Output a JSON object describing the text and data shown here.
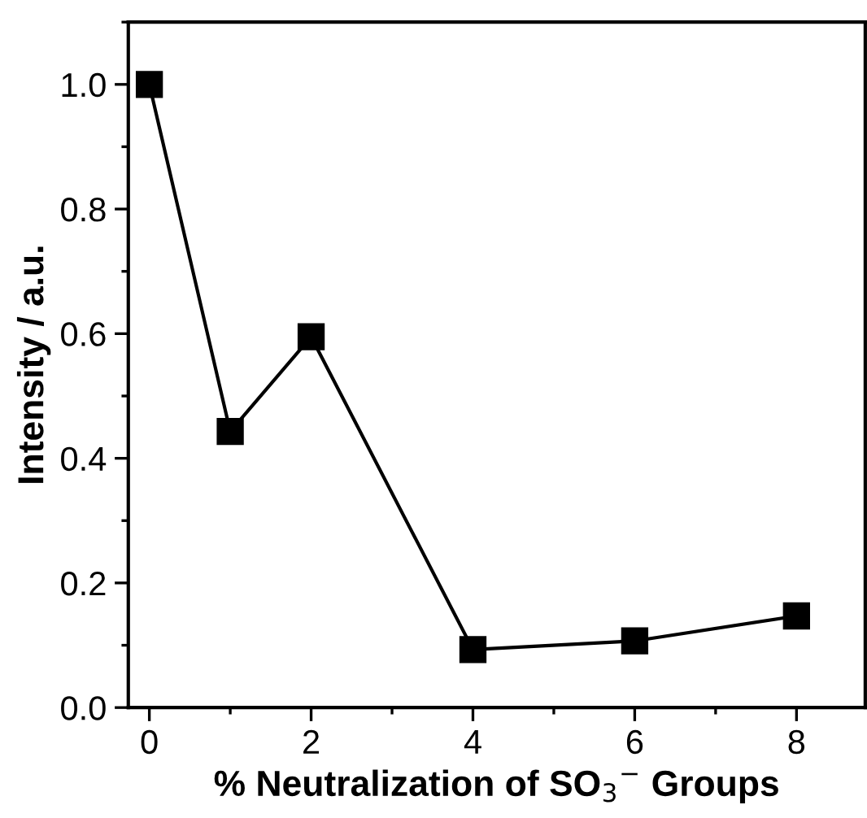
{
  "chart_data": {
    "type": "line",
    "xlabel": "% Neutralization of SO$_{3}$$^{−}$ Groups",
    "ylabel": "Intensity / a.u.",
    "x": [
      0,
      1,
      2,
      4,
      6,
      8
    ],
    "series": [
      {
        "color": "#000000",
        "values": [
          1.0,
          0.443,
          0.595,
          0.093,
          0.107,
          0.147
        ]
      }
    ],
    "marker": "square",
    "line_style": "solid",
    "xlim": [
      -0.26,
      8.85
    ],
    "ylim": [
      0,
      1.1
    ],
    "xticks": [
      0,
      2,
      4,
      6,
      8
    ],
    "yticks": [
      {
        "value": 0,
        "label": "0.0"
      },
      0.2,
      0.4,
      0.6,
      0.8,
      {
        "value": 1,
        "label": "1.0"
      }
    ],
    "grid": false,
    "legend": false
  }
}
